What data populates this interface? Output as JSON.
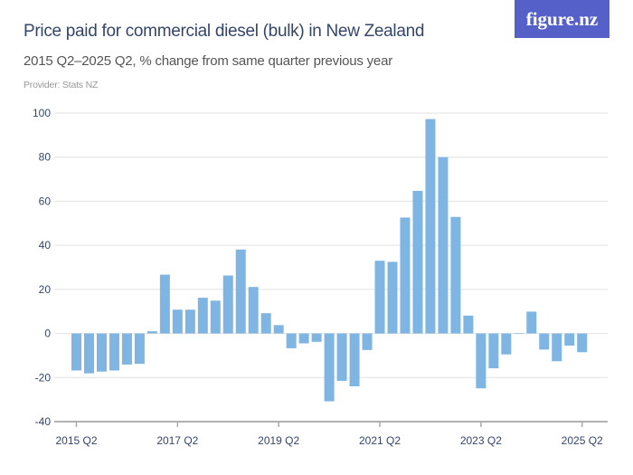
{
  "header": {
    "title": "Price paid for commercial diesel (bulk) in New Zealand",
    "subtitle": "2015 Q2–2025 Q2, % change from same quarter previous year",
    "provider": "Provider: Stats NZ",
    "logo": "figure.nz"
  },
  "colors": {
    "bar": "#7fb5e3",
    "logo_bg": "#5561c9",
    "title": "#34466a"
  },
  "chart_data": {
    "type": "bar",
    "title": "Price paid for commercial diesel (bulk) in New Zealand",
    "subtitle": "2015 Q2–2025 Q2, % change from same quarter previous year",
    "categories": [
      "2015 Q2",
      "2015 Q3",
      "2015 Q4",
      "2016 Q1",
      "2016 Q2",
      "2016 Q3",
      "2016 Q4",
      "2017 Q1",
      "2017 Q2",
      "2017 Q3",
      "2017 Q4",
      "2018 Q1",
      "2018 Q2",
      "2018 Q3",
      "2018 Q4",
      "2019 Q1",
      "2019 Q2",
      "2019 Q3",
      "2019 Q4",
      "2020 Q1",
      "2020 Q2",
      "2020 Q3",
      "2020 Q4",
      "2021 Q1",
      "2021 Q2",
      "2021 Q3",
      "2021 Q4",
      "2022 Q1",
      "2022 Q2",
      "2022 Q3",
      "2022 Q4",
      "2023 Q1",
      "2023 Q2",
      "2023 Q3",
      "2023 Q4",
      "2024 Q1",
      "2024 Q2",
      "2024 Q3",
      "2024 Q4",
      "2025 Q1",
      "2025 Q2"
    ],
    "values": [
      -16.8,
      -18.1,
      -17.3,
      -16.8,
      -14.1,
      -13.8,
      1.0,
      26.7,
      10.8,
      10.8,
      16.2,
      14.9,
      26.3,
      38.1,
      21.1,
      9.2,
      3.8,
      -6.7,
      -4.5,
      -3.8,
      -30.8,
      -21.5,
      -24.0,
      -7.5,
      33.0,
      32.5,
      52.6,
      64.7,
      97.3,
      80.0,
      52.9,
      8.1,
      -24.9,
      -15.8,
      -9.5,
      0.1,
      9.9,
      -7.3,
      -12.6,
      -5.5,
      -8.5
    ],
    "ylim": [
      -40,
      100
    ],
    "yticks": [
      100,
      80,
      60,
      40,
      20,
      0,
      -20,
      -40
    ],
    "xticks": [
      "2015 Q2",
      "2017 Q2",
      "2019 Q2",
      "2021 Q2",
      "2023 Q2",
      "2025 Q2"
    ],
    "grid": true,
    "xlabel": "",
    "ylabel": ""
  }
}
